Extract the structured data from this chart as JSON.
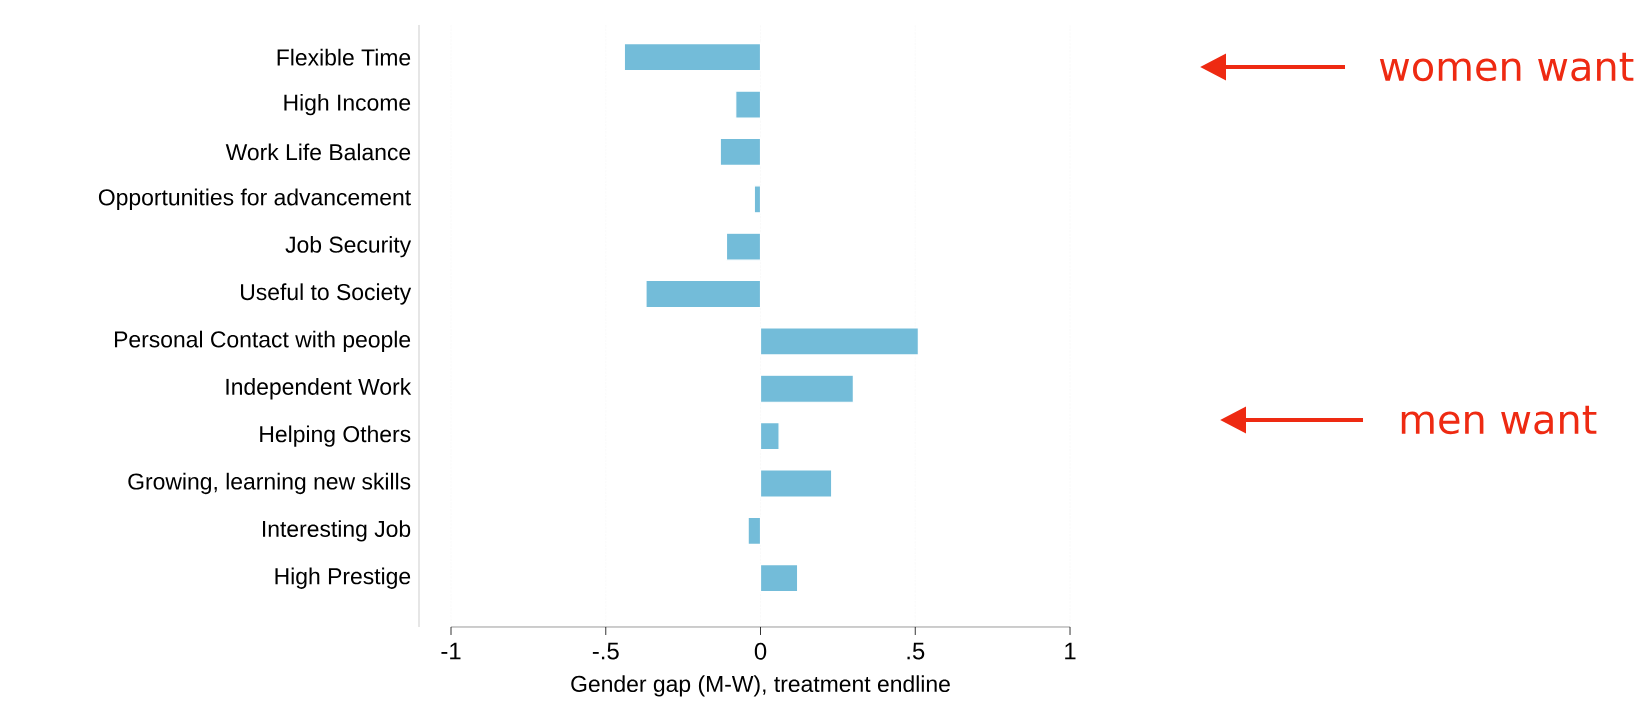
{
  "chart_data": {
    "type": "bar",
    "orientation": "horizontal",
    "xlabel": "Gender gap (M-W), treatment endline",
    "categories": [
      "Flexible Time",
      "High Income",
      "Work Life Balance",
      "Opportunities for advancement",
      "Job Security",
      "Useful to Society",
      "Personal Contact with people",
      "Independent Work",
      "Helping Others",
      "Growing, learning new skills",
      "Interesting Job",
      "High Prestige"
    ],
    "values": [
      -0.44,
      -0.08,
      -0.13,
      -0.02,
      -0.11,
      -0.37,
      0.51,
      0.3,
      0.06,
      0.23,
      -0.04,
      0.12
    ],
    "color": "#73bcd9",
    "xlim": [
      -1,
      1
    ],
    "xticks": [
      {
        "value": -1,
        "label": "-1"
      },
      {
        "value": -0.5,
        "label": "-.5"
      },
      {
        "value": 0,
        "label": "0"
      },
      {
        "value": 0.5,
        "label": ".5"
      },
      {
        "value": 1,
        "label": "1"
      }
    ],
    "grid": "x",
    "annotations": [
      "women want",
      "men want"
    ]
  }
}
